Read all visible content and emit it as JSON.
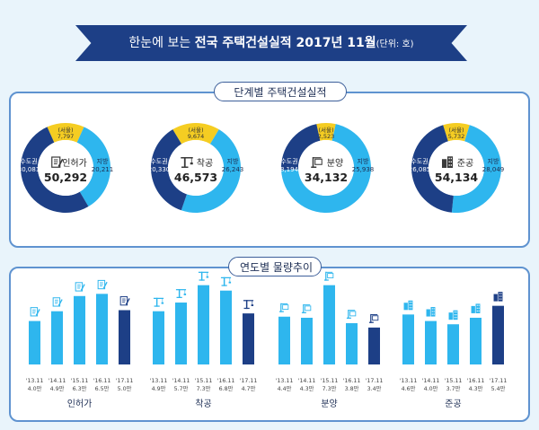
{
  "header": {
    "title_prefix": "한눈에 보는",
    "title_main": "전국 주택건설실적 2017년 11월",
    "title_unit": "(단위: 호)"
  },
  "sections": {
    "stage_title": "단계별 주택건설실적",
    "trend_title": "연도별 물량추이"
  },
  "colors": {
    "capital": "#1d3f86",
    "seoul": "#f5cd22",
    "region": "#2eb6ee",
    "bar_light": "#2eb6ee",
    "bar_current": "#1d3f86",
    "banner": "#1d3f86",
    "border": "#5f93d0"
  },
  "chart_data": [
    {
      "type": "pie",
      "title": "단계별 주택건설실적",
      "charts": [
        {
          "name": "인허가",
          "total": "50,292",
          "icon": "permit-document-icon",
          "slices": [
            {
              "label": "(서울)",
              "value": 7797,
              "display": "7,797"
            },
            {
              "label": "지방",
              "value": 20211,
              "display": "20,211"
            },
            {
              "label": "수도권",
              "value": 30081,
              "display": "30,081"
            }
          ]
        },
        {
          "name": "착공",
          "total": "46,573",
          "icon": "crane-icon",
          "slices": [
            {
              "label": "(서울)",
              "value": 9674,
              "display": "9,674"
            },
            {
              "label": "지방",
              "value": 26243,
              "display": "26,243"
            },
            {
              "label": "수도권",
              "value": 20330,
              "display": "20,330"
            }
          ]
        },
        {
          "name": "분양",
          "total": "34,132",
          "icon": "sale-sign-icon",
          "slices": [
            {
              "label": "(서울)",
              "value": 2523,
              "display": "2,523"
            },
            {
              "label": "지방",
              "value": 25938,
              "display": "25,938"
            },
            {
              "label": "수도권",
              "value": 8194,
              "display": "8,194"
            }
          ]
        },
        {
          "name": "준공",
          "total": "54,134",
          "icon": "building-icon",
          "slices": [
            {
              "label": "(서울)",
              "value": 5732,
              "display": "5,732"
            },
            {
              "label": "지방",
              "value": 28049,
              "display": "28,049"
            },
            {
              "label": "수도권",
              "value": 26085,
              "display": "26,085"
            }
          ]
        }
      ]
    },
    {
      "type": "bar",
      "title": "연도별 물량추이",
      "categories": [
        "'13.11",
        "'14.11",
        "'15.11",
        "'16.11",
        "'17.11"
      ],
      "groups": [
        {
          "name": "인허가",
          "icon": "permit-document-icon",
          "values": [
            4.0,
            4.9,
            6.3,
            6.5,
            5.0
          ],
          "labels": [
            "4.0만",
            "4.9만",
            "6.3만",
            "6.5만",
            "5.0만"
          ]
        },
        {
          "name": "착공",
          "icon": "crane-icon",
          "values": [
            4.9,
            5.7,
            7.3,
            6.8,
            4.7
          ],
          "labels": [
            "4.9만",
            "5.7만",
            "7.3만",
            "6.8만",
            "4.7만"
          ]
        },
        {
          "name": "분양",
          "icon": "sale-sign-icon",
          "values": [
            4.4,
            4.3,
            7.3,
            3.8,
            3.4
          ],
          "labels": [
            "4.4만",
            "4.3만",
            "7.3만",
            "3.8만",
            "3.4만"
          ]
        },
        {
          "name": "준공",
          "icon": "building-icon",
          "values": [
            4.6,
            4.0,
            3.7,
            4.3,
            5.4
          ],
          "labels": [
            "4.6만",
            "4.0만",
            "3.7만",
            "4.3만",
            "5.4만"
          ]
        }
      ],
      "highlight_index": 4
    }
  ]
}
